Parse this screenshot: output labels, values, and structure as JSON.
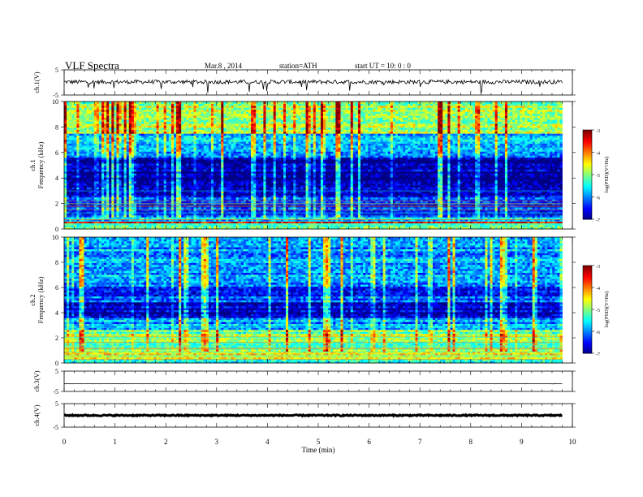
{
  "header": {
    "title": "VLF  Spectra",
    "date": "Mar.8  , 2014",
    "station": "station=ATH",
    "start": "start  UT  =   10: 0  : 0"
  },
  "chart_data": [
    {
      "type": "line",
      "ylabel": "ch.1(V)",
      "ylim": [
        -5,
        5
      ],
      "yticks": [
        "5",
        "-5"
      ],
      "xlim": [
        0,
        10
      ],
      "x_extent": 9.8,
      "description_level": "noisy waveform centred near 0 V, spikes to about -4 V",
      "baseline": 0.2
    },
    {
      "type": "heatmap",
      "ylabel": "ch.1\nFrequency  (kHz)",
      "ylim": [
        0,
        10
      ],
      "yticks": [
        "0",
        "2",
        "4",
        "6",
        "8",
        "10"
      ],
      "xlim": [
        0,
        10
      ],
      "x_extent": 9.8,
      "colorbar": {
        "label": "log(PSD)(V²/Hz)",
        "range": [
          -7,
          -3
        ],
        "ticks": [
          "-3",
          "-4",
          "-5",
          "-6",
          "-7"
        ]
      },
      "bands": [
        {
          "from": 0,
          "to": 0.4,
          "level": -5.2
        },
        {
          "from": 0.4,
          "to": 0.7,
          "level": -3.4
        },
        {
          "from": 0.7,
          "to": 1.0,
          "level": -5.6
        },
        {
          "from": 1.0,
          "to": 2.6,
          "level": -6.3
        },
        {
          "from": 2.6,
          "to": 3.3,
          "level": -6.6
        },
        {
          "from": 3.3,
          "to": 5.6,
          "level": -6.9
        },
        {
          "from": 5.6,
          "to": 7.5,
          "level": -5.8
        },
        {
          "from": 7.5,
          "to": 10,
          "level": -4.8
        }
      ]
    },
    {
      "type": "heatmap",
      "ylabel": "ch.2\nFrequency  (kHz)",
      "ylim": [
        0,
        10
      ],
      "yticks": [
        "0",
        "2",
        "4",
        "6",
        "8",
        "10"
      ],
      "xlim": [
        0,
        10
      ],
      "x_extent": 9.8,
      "colorbar": {
        "label": "log(PSD)(V²/Hz)",
        "range": [
          -7,
          -3
        ],
        "ticks": [
          "-3",
          "-4",
          "-5",
          "-6",
          "-7"
        ]
      },
      "bands": [
        {
          "from": 0,
          "to": 0.3,
          "level": -5.4
        },
        {
          "from": 0.3,
          "to": 0.9,
          "level": -4.4
        },
        {
          "from": 0.9,
          "to": 2.6,
          "level": -5.0
        },
        {
          "from": 2.6,
          "to": 3.6,
          "level": -5.9
        },
        {
          "from": 3.6,
          "to": 4.9,
          "level": -6.8
        },
        {
          "from": 4.9,
          "to": 6.1,
          "level": -6.3
        },
        {
          "from": 6.1,
          "to": 10,
          "level": -5.9
        }
      ]
    },
    {
      "type": "line",
      "ylabel": "ch.3(V)",
      "ylim": [
        -5,
        5
      ],
      "yticks": [
        "5",
        "-5"
      ],
      "xlim": [
        0,
        10
      ],
      "x_extent": 9.8,
      "baseline": -1.2
    },
    {
      "type": "line",
      "ylabel": "ch.4(V)",
      "ylim": [
        -5,
        5
      ],
      "yticks": [
        "5",
        "-5"
      ],
      "xlim": [
        0,
        10
      ],
      "x_extent": 9.8,
      "baseline": 0.0
    }
  ],
  "xaxis": {
    "label": "Time  (min)",
    "ticks": [
      "0",
      "1",
      "2",
      "3",
      "4",
      "5",
      "6",
      "7",
      "8",
      "9",
      "10"
    ]
  }
}
